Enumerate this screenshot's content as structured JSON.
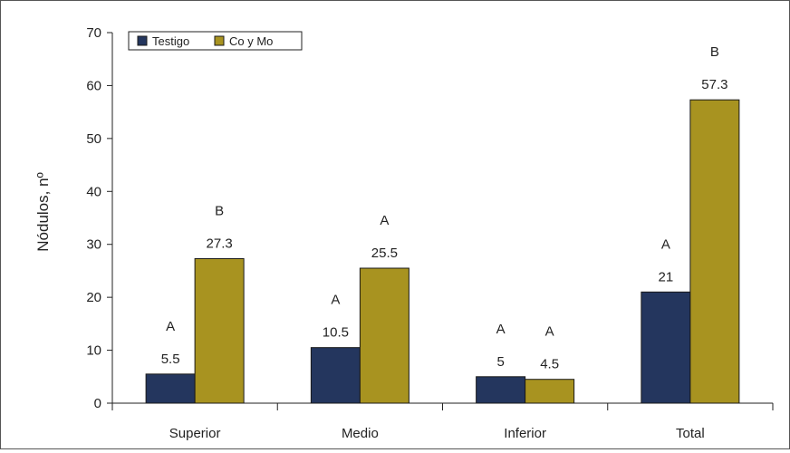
{
  "chart_data": {
    "type": "bar",
    "categories": [
      "Superior",
      "Medio",
      "Inferior",
      "Total"
    ],
    "series": [
      {
        "name": "Testigo",
        "color": "#24365e",
        "values": [
          5.5,
          10.5,
          5,
          21
        ],
        "value_labels": [
          "5.5",
          "10.5",
          "5",
          "21"
        ],
        "letters": [
          "A",
          "A",
          "A",
          "A"
        ]
      },
      {
        "name": "Co y Mo",
        "color": "#a89320",
        "values": [
          27.3,
          25.5,
          4.5,
          57.3
        ],
        "value_labels": [
          "27.3",
          "25.5",
          "4.5",
          "57.3"
        ],
        "letters": [
          "B",
          "A",
          "A",
          "B"
        ]
      }
    ],
    "ylabel": "Nódulos, nº",
    "xlabel": "",
    "ylim": [
      0,
      70
    ],
    "yticks": [
      "0",
      "10",
      "20",
      "30",
      "40",
      "50",
      "60",
      "70"
    ],
    "grid": false,
    "legend_position": "top-left"
  }
}
